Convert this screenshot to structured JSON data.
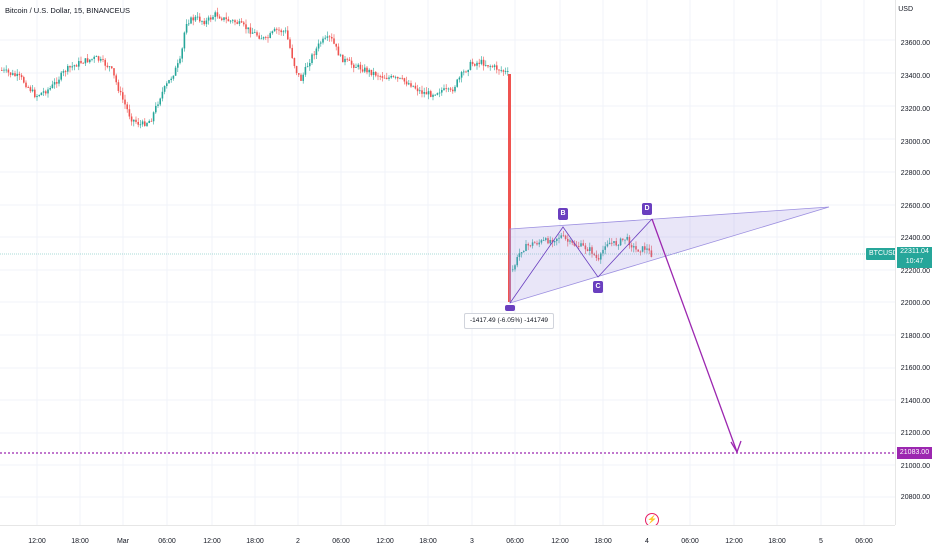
{
  "header": {
    "symbol_title": "Bitcoin / U.S. Dollar, 15, BINANCEUS"
  },
  "price_axis": {
    "currency": "USD",
    "ticks": [
      "23600.00",
      "23400.00",
      "23200.00",
      "23000.00",
      "22800.00",
      "22600.00",
      "22400.00",
      "22200.00",
      "22000.00",
      "21800.00",
      "21600.00",
      "21400.00",
      "21200.00",
      "21000.00",
      "20800.00"
    ],
    "current_price": "22311.04",
    "countdown": "10:47",
    "target_price": "21083.00"
  },
  "time_axis": {
    "ticks": [
      "12:00",
      "18:00",
      "Mar",
      "06:00",
      "12:00",
      "18:00",
      "2",
      "06:00",
      "12:00",
      "18:00",
      "3",
      "06:00",
      "12:00",
      "18:00",
      "4",
      "06:00",
      "12:00",
      "18:00",
      "5",
      "06:00"
    ]
  },
  "ticker": "BTCUSD",
  "measure_label": "-1417.49 (-6.05%) -141749",
  "pattern_points": [
    "B",
    "C",
    "D"
  ],
  "colors": {
    "up": "#26a69a",
    "down": "#ef5350",
    "pattern": "#9c27b0",
    "accent": "#26a69a"
  },
  "icons": {
    "flash": "lightning-icon"
  }
}
